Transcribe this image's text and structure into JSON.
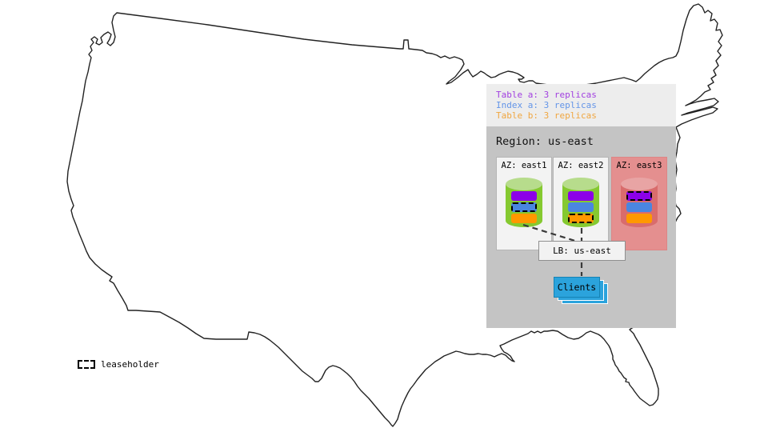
{
  "legend": {
    "items": [
      {
        "key": "table-a",
        "label": "Table a: 3 replicas",
        "text_color": "#a13fe0"
      },
      {
        "key": "index-a",
        "label": "Index a: 3 replicas",
        "text_color": "#6495e8"
      },
      {
        "key": "table-b",
        "label": "Table b: 3 replicas",
        "text_color": "#f0a640"
      }
    ]
  },
  "region": {
    "title": "Region: us-east",
    "azs": [
      {
        "label": "AZ: east1",
        "highlighted": false,
        "bars": [
          {
            "key": "table-a",
            "leaseholder": false
          },
          {
            "key": "index-a",
            "leaseholder": true
          },
          {
            "key": "table-b",
            "leaseholder": false
          }
        ]
      },
      {
        "label": "AZ: east2",
        "highlighted": false,
        "bars": [
          {
            "key": "table-a",
            "leaseholder": false
          },
          {
            "key": "index-a",
            "leaseholder": false
          },
          {
            "key": "table-b",
            "leaseholder": true
          }
        ]
      },
      {
        "label": "AZ: east3",
        "highlighted": true,
        "bars": [
          {
            "key": "table-a",
            "leaseholder": true
          },
          {
            "key": "index-a",
            "leaseholder": false
          },
          {
            "key": "table-b",
            "leaseholder": false
          }
        ]
      }
    ],
    "lb_label": "LB: us-east",
    "clients_label": "Clients"
  },
  "map_key": {
    "leaseholder_label": "leaseholder"
  },
  "colors": {
    "bars": {
      "table-a": "#8c00e8",
      "index-a": "#4a86e0",
      "table-b": "#ff9800"
    },
    "cylinder_body": "#85c930",
    "cylinder_top": "#b7dc8c",
    "cylinder_body_highlight": "#d96c6c",
    "cylinder_top_highlight": "#e8a4a4",
    "az_highlight_bg": "#e48f8f",
    "clients_blue": "#2ba3dc",
    "panel_gray": "#c4c4c4",
    "legend_gray": "#ededed"
  }
}
